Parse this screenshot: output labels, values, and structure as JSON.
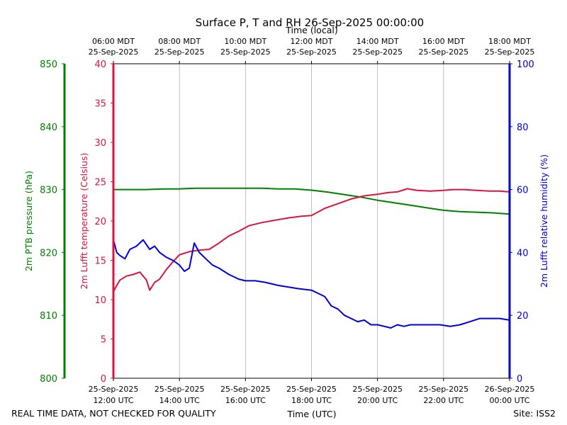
{
  "chart_data": {
    "type": "line",
    "title": "Surface P, T and RH 26-Sep-2025 00:00:00",
    "top_axis_label": "Time (local)",
    "bottom_axis_label": "Time (UTC)",
    "footer_left": "REAL TIME DATA, NOT CHECKED FOR QUALITY",
    "footer_right": "Site: ISS2",
    "x_range_hours_utc": [
      12,
      24
    ],
    "top_ticks": [
      {
        "x": 12,
        "line1": "06:00 MDT",
        "line2": "25-Sep-2025"
      },
      {
        "x": 14,
        "line1": "08:00 MDT",
        "line2": "25-Sep-2025"
      },
      {
        "x": 16,
        "line1": "10:00 MDT",
        "line2": "25-Sep-2025"
      },
      {
        "x": 18,
        "line1": "12:00 MDT",
        "line2": "25-Sep-2025"
      },
      {
        "x": 20,
        "line1": "14:00 MDT",
        "line2": "25-Sep-2025"
      },
      {
        "x": 22,
        "line1": "16:00 MDT",
        "line2": "25-Sep-2025"
      },
      {
        "x": 24,
        "line1": "18:00 MDT",
        "line2": "25-Sep-2025"
      }
    ],
    "bottom_ticks": [
      {
        "x": 12,
        "line1": "25-Sep-2025",
        "line2": "12:00 UTC"
      },
      {
        "x": 14,
        "line1": "25-Sep-2025",
        "line2": "14:00 UTC"
      },
      {
        "x": 16,
        "line1": "25-Sep-2025",
        "line2": "16:00 UTC"
      },
      {
        "x": 18,
        "line1": "25-Sep-2025",
        "line2": "18:00 UTC"
      },
      {
        "x": 20,
        "line1": "25-Sep-2025",
        "line2": "20:00 UTC"
      },
      {
        "x": 22,
        "line1": "25-Sep-2025",
        "line2": "22:00 UTC"
      },
      {
        "x": 24,
        "line1": "26-Sep-2025",
        "line2": "00:00 UTC"
      }
    ],
    "grid": "vertical",
    "axes": {
      "pressure": {
        "label": "2m PTB pressure (hPa)",
        "range": [
          800,
          850
        ],
        "ticks": [
          800,
          810,
          820,
          830,
          840,
          850
        ],
        "color": "#008000"
      },
      "temperature": {
        "label": "2m Lufft temperature (Celsius)",
        "range": [
          0,
          40
        ],
        "ticks": [
          0,
          5,
          10,
          15,
          20,
          25,
          30,
          35,
          40
        ],
        "color": "#dc143c"
      },
      "humidity": {
        "label": "2m Lufft relative humidity (%)",
        "range": [
          0,
          100
        ],
        "ticks": [
          0,
          20,
          40,
          60,
          80,
          100
        ],
        "color": "#0000dd"
      }
    },
    "series": [
      {
        "axis": "pressure",
        "color": "#008000",
        "x": [
          12.0,
          12.5,
          13.0,
          13.5,
          14.0,
          14.5,
          15.0,
          15.5,
          16.0,
          16.5,
          17.0,
          17.5,
          18.0,
          18.5,
          19.0,
          19.5,
          20.0,
          20.5,
          21.0,
          21.5,
          22.0,
          22.5,
          23.0,
          23.5,
          24.0
        ],
        "values": [
          830.0,
          830.0,
          830.0,
          830.1,
          830.1,
          830.2,
          830.2,
          830.2,
          830.2,
          830.2,
          830.1,
          830.1,
          829.9,
          829.6,
          829.2,
          828.8,
          828.3,
          827.9,
          827.5,
          827.1,
          826.7,
          826.5,
          826.4,
          826.3,
          826.1
        ]
      },
      {
        "axis": "temperature",
        "color": "#dc143c",
        "x": [
          12.0,
          12.1,
          12.2,
          12.4,
          12.6,
          12.8,
          13.0,
          13.1,
          13.25,
          13.4,
          13.6,
          13.8,
          14.0,
          14.3,
          14.6,
          14.9,
          15.2,
          15.5,
          15.8,
          16.1,
          16.5,
          16.9,
          17.3,
          17.7,
          18.0,
          18.4,
          18.8,
          19.2,
          19.6,
          20.0,
          20.3,
          20.6,
          20.9,
          21.2,
          21.6,
          22.0,
          22.3,
          22.6,
          23.0,
          23.4,
          23.7,
          24.0
        ],
        "values": [
          11.0,
          11.8,
          12.5,
          13.0,
          13.2,
          13.5,
          12.5,
          11.2,
          12.2,
          12.6,
          13.8,
          14.8,
          15.7,
          16.1,
          16.3,
          16.4,
          17.2,
          18.1,
          18.7,
          19.4,
          19.8,
          20.1,
          20.4,
          20.6,
          20.7,
          21.6,
          22.2,
          22.8,
          23.2,
          23.4,
          23.6,
          23.7,
          24.1,
          23.9,
          23.8,
          23.9,
          24.0,
          24.0,
          23.9,
          23.8,
          23.8,
          23.7
        ]
      },
      {
        "axis": "humidity",
        "color": "#0000dd",
        "x": [
          12.0,
          12.1,
          12.2,
          12.35,
          12.5,
          12.7,
          12.9,
          13.1,
          13.25,
          13.4,
          13.6,
          13.8,
          14.0,
          14.15,
          14.3,
          14.45,
          14.6,
          14.8,
          15.0,
          15.2,
          15.5,
          15.8,
          16.0,
          16.3,
          16.6,
          17.0,
          17.3,
          17.6,
          18.0,
          18.2,
          18.4,
          18.6,
          18.8,
          19.0,
          19.2,
          19.4,
          19.6,
          19.8,
          20.0,
          20.2,
          20.4,
          20.6,
          20.8,
          21.0,
          21.3,
          21.6,
          21.9,
          22.2,
          22.5,
          22.8,
          23.1,
          23.4,
          23.7,
          24.0
        ],
        "values": [
          44.0,
          40.0,
          39.0,
          38.0,
          41.0,
          42.0,
          44.0,
          41.0,
          42.0,
          40.0,
          38.5,
          37.5,
          36.0,
          34.0,
          35.0,
          43.0,
          40.0,
          38.0,
          36.0,
          35.0,
          33.0,
          31.5,
          31.0,
          31.0,
          30.5,
          29.5,
          29.0,
          28.5,
          28.0,
          27.0,
          26.0,
          23.0,
          22.0,
          20.0,
          19.0,
          18.0,
          18.5,
          17.0,
          17.0,
          16.5,
          16.0,
          17.0,
          16.5,
          17.0,
          17.0,
          17.0,
          17.0,
          16.5,
          17.0,
          18.0,
          19.0,
          19.0,
          19.0,
          18.5
        ]
      }
    ]
  }
}
